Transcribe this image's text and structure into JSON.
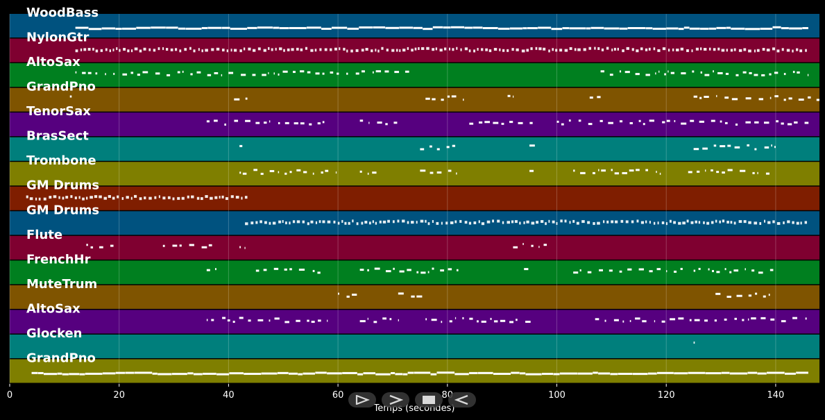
{
  "chart_data": {
    "type": "piano-roll",
    "xlabel": "Temps (secondes)",
    "xlim": [
      0,
      148
    ],
    "xticks": [
      0,
      20,
      40,
      60,
      80,
      100,
      120,
      140
    ],
    "grid": true,
    "tracks": [
      {
        "name": "WoodBass",
        "color": "#00527f",
        "segments": [
          [
            12,
            146
          ]
        ],
        "pattern": "line"
      },
      {
        "name": "NylonGtr",
        "color": "#7f0030",
        "segments": [
          [
            12,
            146
          ]
        ],
        "pattern": "dense"
      },
      {
        "name": "AltoSax",
        "color": "#007f1f",
        "segments": [
          [
            12,
            73
          ],
          [
            108,
            146
          ]
        ],
        "pattern": "sparse"
      },
      {
        "name": "GrandPno",
        "color": "#7f5400",
        "segments": [
          [
            11,
            12
          ],
          [
            41,
            44
          ],
          [
            76,
            83
          ],
          [
            91,
            92
          ],
          [
            106,
            108
          ],
          [
            125,
            148
          ]
        ],
        "pattern": "sparse"
      },
      {
        "name": "TenorSax",
        "color": "#56007f",
        "segments": [
          [
            36,
            58
          ],
          [
            64,
            71
          ],
          [
            84,
            96
          ],
          [
            100,
            146
          ]
        ],
        "pattern": "sparse"
      },
      {
        "name": "BrasSect",
        "color": "#007f7c",
        "segments": [
          [
            42,
            43
          ],
          [
            75,
            82
          ],
          [
            95,
            96
          ],
          [
            125,
            140
          ]
        ],
        "pattern": "sparse"
      },
      {
        "name": "Trombone",
        "color": "#7f7f00",
        "segments": [
          [
            42,
            60
          ],
          [
            64,
            68
          ],
          [
            75,
            83
          ],
          [
            95,
            96
          ],
          [
            103,
            120
          ],
          [
            124,
            140
          ]
        ],
        "pattern": "sparse"
      },
      {
        "name": "GM Drums",
        "color": "#7f1e00",
        "segments": [
          [
            3,
            43
          ]
        ],
        "pattern": "dense"
      },
      {
        "name": "GM Drums",
        "color": "#00527f",
        "segments": [
          [
            43,
            146
          ]
        ],
        "pattern": "dense"
      },
      {
        "name": "Flute",
        "color": "#7f0030",
        "segments": [
          [
            14,
            19
          ],
          [
            28,
            38
          ],
          [
            42,
            43
          ],
          [
            92,
            99
          ]
        ],
        "pattern": "sparse"
      },
      {
        "name": "FrenchHr",
        "color": "#007f1f",
        "segments": [
          [
            36,
            38
          ],
          [
            45,
            58
          ],
          [
            64,
            82
          ],
          [
            94,
            96
          ],
          [
            103,
            123
          ],
          [
            125,
            140
          ]
        ],
        "pattern": "sparse"
      },
      {
        "name": "MuteTrum",
        "color": "#7f5400",
        "segments": [
          [
            60,
            64
          ],
          [
            71,
            76
          ],
          [
            129,
            140
          ]
        ],
        "pattern": "sparse"
      },
      {
        "name": "AltoSax",
        "color": "#56007f",
        "segments": [
          [
            36,
            58
          ],
          [
            64,
            71
          ],
          [
            76,
            83
          ],
          [
            84,
            96
          ],
          [
            107,
            146
          ]
        ],
        "pattern": "sparse"
      },
      {
        "name": "Glocken",
        "color": "#007f7c",
        "segments": [
          [
            125,
            126
          ]
        ],
        "pattern": "sparse"
      },
      {
        "name": "GrandPno",
        "color": "#7f7f00",
        "segments": [
          [
            4,
            146
          ]
        ],
        "pattern": "line"
      }
    ]
  },
  "controls": [
    {
      "name": "play-reverse",
      "icon": "play-outline-icon"
    },
    {
      "name": "forward",
      "icon": "chevron-right-icon"
    },
    {
      "name": "stop",
      "icon": "stop-icon"
    },
    {
      "name": "back",
      "icon": "chevron-left-icon"
    }
  ]
}
